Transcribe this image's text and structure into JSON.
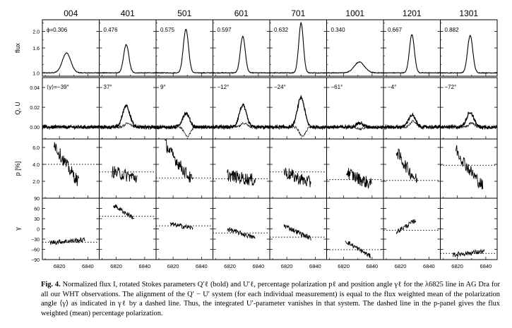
{
  "figure": {
    "label": "Fig. 4.",
    "caption": "Normalized flux I, rotated Stokes parameters Q′ℓ (bold) and U′ℓ, percentage polarization pℓ and position angle γℓ for the λ6825 line in AG Dra for all our WHT observations. The alignment of the Q′ − U′ system (for each individual measurement) is equal to the flux weighted mean of the polarization angle ⟨γ⟩ as indicated in γℓ by a dashed line. Thus, the integrated U′-parameter vanishes in that system. The dashed line in the p-panel gives the flux weighted (mean) percentage polarization."
  },
  "chart_data": {
    "type": "line",
    "columns": [
      "004",
      "401",
      "501",
      "601",
      "701",
      "1001",
      "1201",
      "1301"
    ],
    "phase_labels": [
      "ϕ=0.306",
      "0.476",
      "0.575",
      "0.597",
      "0.632",
      "0.340",
      "0.667",
      "0.882"
    ],
    "gamma_labels": [
      "⟨γ⟩=−39°",
      "37°",
      "9°",
      "−12°",
      "−24°",
      "−61°",
      "−4°",
      "−72°"
    ],
    "rows": [
      {
        "ylabel": "flux",
        "ylim": [
          0.92,
          2.28
        ],
        "ticks": [
          1.0,
          1.6,
          2.0
        ],
        "tick_labels": [
          "1.0",
          "1.6",
          "2.0"
        ],
        "minor_ticks": [
          1.2,
          1.4,
          1.8,
          2.2
        ]
      },
      {
        "ylabel": "Q, U",
        "ylim": [
          -0.012,
          0.05
        ],
        "ticks": [
          0.0,
          0.02,
          0.04
        ],
        "tick_labels": [
          "0.00",
          "0.02",
          "0.04"
        ]
      },
      {
        "ylabel": "p [%]",
        "ylim": [
          0,
          7
        ],
        "ticks": [
          2,
          4,
          6
        ],
        "tick_labels": [
          "2.0",
          "4.0",
          "6.0"
        ]
      },
      {
        "ylabel": "γ",
        "ylim": [
          -90,
          90
        ],
        "ticks": [
          -90,
          -60,
          -30,
          0,
          30,
          60,
          90
        ],
        "tick_labels": [
          "−90",
          "−60",
          "−30",
          "0",
          "30",
          "60",
          "90"
        ]
      }
    ],
    "xlim": [
      6808,
      6848
    ],
    "xticks": [
      6820,
      6840
    ],
    "xtick_labels": [
      "6820",
      "6840"
    ],
    "series": [
      {
        "name": "flux",
        "peak_flux": [
          1.48,
          1.68,
          2.05,
          1.88,
          2.2,
          1.26,
          1.92,
          1.9
        ],
        "center": [
          6825,
          6827,
          6829,
          6829,
          6830,
          6831,
          6828,
          6829
        ],
        "width": [
          6.5,
          4.0,
          4.0,
          3.8,
          3.6,
          8.0,
          3.8,
          4.0
        ]
      },
      {
        "name": "Q′ℓ (bold)",
        "amplitude": [
          0.0,
          0.022,
          0.014,
          0.022,
          0.03,
          0.004,
          0.012,
          0.015
        ],
        "center": [
          6825,
          6827,
          6829,
          6829,
          6830,
          6831,
          6828,
          6829
        ]
      },
      {
        "name": "U′ℓ",
        "amplitude": [
          0.0,
          0.004,
          -0.01,
          0.004,
          -0.01,
          -0.002,
          0.006,
          0.004
        ],
        "center": [
          6825,
          6827,
          6829,
          6829,
          6830,
          6831,
          6828,
          6829
        ]
      },
      {
        "name": "pℓ",
        "mean_p": [
          4.0,
          3.1,
          2.4,
          2.3,
          3.1,
          2.2,
          2.1,
          3.9
        ],
        "segment": [
          [
            6816,
            6834
          ],
          [
            6817,
            6835
          ],
          [
            6814,
            6834
          ],
          [
            6818,
            6838
          ],
          [
            6818,
            6837
          ],
          [
            6822,
            6840
          ],
          [
            6817,
            6832
          ],
          [
            6819,
            6838
          ]
        ],
        "start_p": [
          6.8,
          3.2,
          6.8,
          2.8,
          3.2,
          3.2,
          5.8,
          6.0
        ],
        "end_p": [
          1.8,
          2.4,
          2.0,
          2.1,
          1.8,
          1.6,
          2.0,
          1.4
        ]
      },
      {
        "name": "γℓ",
        "mean_gamma": [
          -39,
          37,
          9,
          -12,
          -24,
          -61,
          -4,
          -72
        ],
        "segment": [
          [
            6813,
            6838
          ],
          [
            6818,
            6833
          ],
          [
            6818,
            6834
          ],
          [
            6818,
            6838
          ],
          [
            6818,
            6837
          ],
          [
            6821,
            6839
          ],
          [
            6817,
            6831
          ],
          [
            6817,
            6839
          ]
        ],
        "start_gamma": [
          -40,
          70,
          14,
          0,
          10,
          -35,
          -9,
          -76
        ],
        "end_gamma": [
          -32,
          30,
          2,
          -27,
          -28,
          -81,
          26,
          -66
        ]
      }
    ]
  }
}
